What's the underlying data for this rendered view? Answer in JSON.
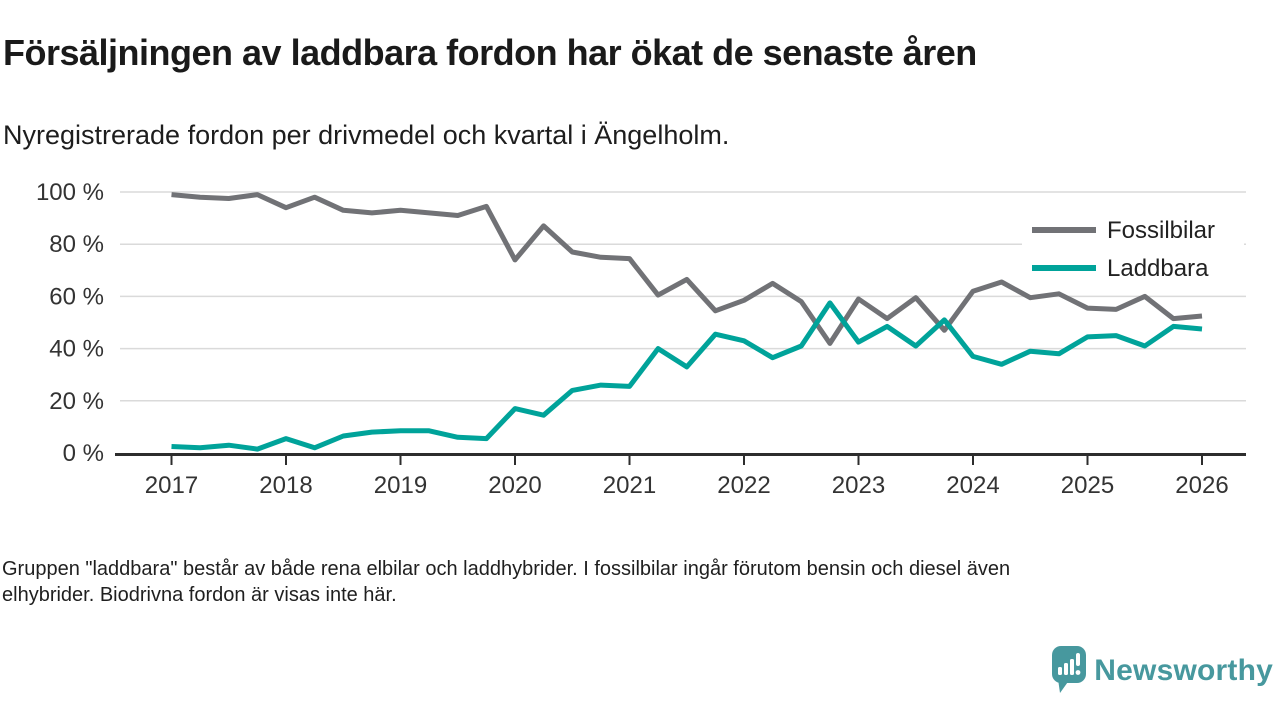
{
  "header": {
    "title": "Försäljningen av laddbara fordon har ökat de senaste åren",
    "subtitle": "Nyregistrerade fordon per drivmedel och kvartal i Ängelholm."
  },
  "chart_data": {
    "type": "line",
    "title": "Försäljningen av laddbara fordon har ökat de senaste åren",
    "subtitle": "Nyregistrerade fordon per drivmedel och kvartal i Ängelholm.",
    "unit": "%",
    "ylim": [
      0,
      100
    ],
    "y_ticks": [
      0,
      20,
      40,
      60,
      80,
      100
    ],
    "y_tick_suffix": " %",
    "x_ticks": [
      2017,
      2018,
      2019,
      2020,
      2021,
      2022,
      2023,
      2024,
      2025,
      2026
    ],
    "grid": "horizontal",
    "legend_position": "top-right",
    "categories": [
      "2017K1",
      "2017K2",
      "2017K3",
      "2017K4",
      "2018K1",
      "2018K2",
      "2018K3",
      "2018K4",
      "2019K1",
      "2019K2",
      "2019K3",
      "2019K4",
      "2020K1",
      "2020K2",
      "2020K3",
      "2020K4",
      "2021K1",
      "2021K2",
      "2021K3",
      "2021K4",
      "2022K1",
      "2022K2",
      "2022K3",
      "2022K4",
      "2023K1",
      "2023K2",
      "2023K3",
      "2023K4",
      "2024K1",
      "2024K2",
      "2024K3",
      "2024K4",
      "2025K1",
      "2025K2",
      "2025K3",
      "2025K4",
      "2026K1"
    ],
    "series": [
      {
        "name": "Fossilbilar",
        "color": "#717276",
        "values": [
          99,
          98,
          97.5,
          99,
          94,
          98,
          93,
          92,
          93,
          92,
          91,
          94.5,
          74,
          87,
          77,
          75,
          74.5,
          60.5,
          66.5,
          54.5,
          58.5,
          65,
          58,
          42,
          59,
          51.5,
          59.5,
          47,
          62,
          65.5,
          59.5,
          61,
          55.5,
          55,
          60,
          51.5,
          52.5
        ]
      },
      {
        "name": "Laddbara",
        "color": "#00a39a",
        "values": [
          2.5,
          2,
          3,
          1.5,
          5.5,
          2,
          6.5,
          8,
          8.5,
          8.5,
          6,
          5.5,
          17,
          14.5,
          24,
          26,
          25.5,
          40,
          33,
          45.5,
          43,
          36.5,
          41,
          57.5,
          42.5,
          48.5,
          41,
          51,
          37,
          34,
          39,
          38,
          44.5,
          45,
          41,
          48.5,
          47.5
        ]
      }
    ]
  },
  "footer": {
    "line1": "Gruppen \"laddbara\" består av både rena elbilar och laddhybrider. I fossilbilar ingår förutom bensin och diesel även",
    "line2": "elhybrider. Biodrivna fordon är visas inte här."
  },
  "logo": {
    "text": "Newsworthy",
    "color": "#47989e",
    "icon": "newsworthy-speech-bubble-chart-icon"
  },
  "style": {
    "axis_color": "#2d2d2d",
    "gridline_color": "#dadada",
    "tick_label_color": "#333333",
    "legend_label_color": "#222222"
  }
}
